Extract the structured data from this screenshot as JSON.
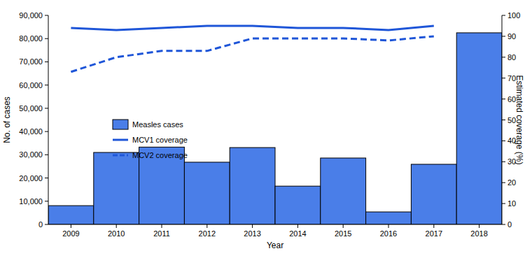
{
  "chart_data": {
    "type": "bar",
    "xlabel": "Year",
    "ylabel": "No. of cases",
    "y2label": "Estimated coverage (%)",
    "categories": [
      "2009",
      "2010",
      "2011",
      "2012",
      "2013",
      "2014",
      "2015",
      "2016",
      "2017",
      "2018"
    ],
    "series": [
      {
        "name": "Measles cases",
        "type": "bar",
        "color": "#4a7ee8",
        "values": [
          8100,
          31000,
          33300,
          26800,
          33100,
          16500,
          28600,
          5400,
          25900,
          82500
        ]
      },
      {
        "name": "MCV1 coverage",
        "type": "line",
        "axis": "y2",
        "color": "#1f56d8",
        "line_style": "solid",
        "values": [
          94,
          93,
          94,
          95,
          95,
          94,
          94,
          93,
          95,
          null
        ]
      },
      {
        "name": "MCV2 coverage",
        "type": "line",
        "axis": "y2",
        "color": "#1f56d8",
        "line_style": "dashed",
        "values": [
          73,
          80,
          83,
          83,
          89,
          89,
          89,
          88,
          90,
          null
        ]
      }
    ],
    "ylim": [
      0,
      90000
    ],
    "yticks": [
      0,
      {
        "value": 10000,
        "label": "10,000"
      },
      {
        "value": 20000,
        "label": "20,000"
      },
      {
        "value": 30000,
        "label": "30,000"
      },
      {
        "value": 40000,
        "label": "40,000"
      },
      {
        "value": 50000,
        "label": "50,000"
      },
      {
        "value": 60000,
        "label": "60,000"
      },
      {
        "value": 70000,
        "label": "70,000"
      },
      {
        "value": 80000,
        "label": "80,000"
      },
      {
        "value": 90000,
        "label": "90,000"
      }
    ],
    "y2lim": [
      0,
      100
    ],
    "y2ticks": [
      0,
      10,
      20,
      30,
      40,
      50,
      60,
      70,
      80,
      90,
      100
    ],
    "grid": false,
    "legend": "left"
  }
}
